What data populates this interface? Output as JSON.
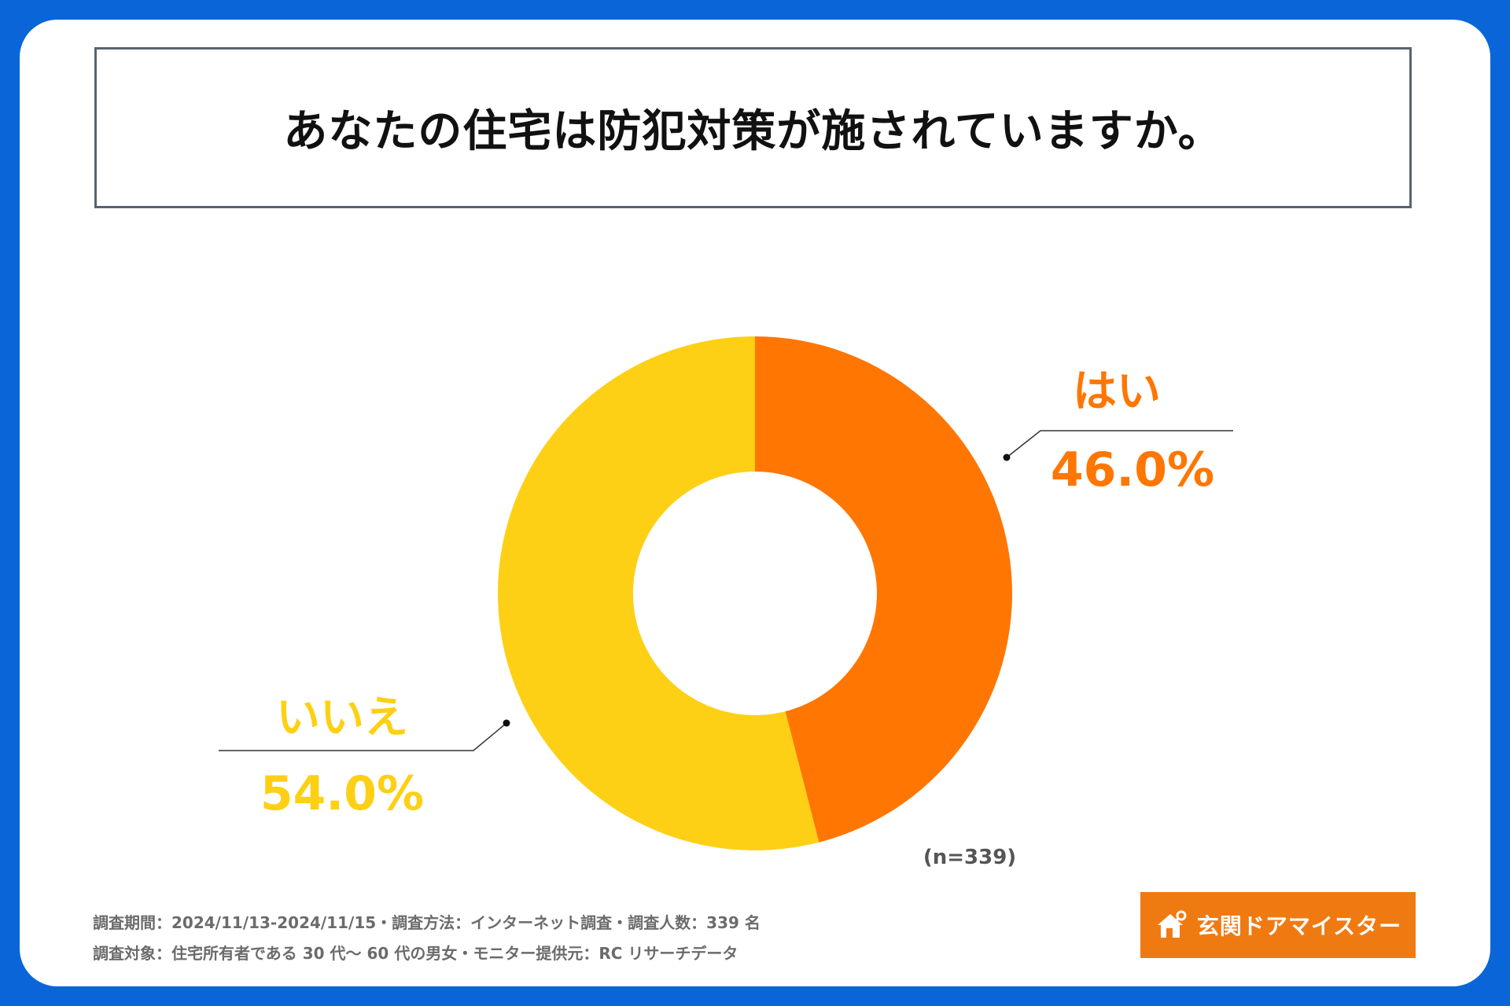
{
  "title": "あなたの住宅は防犯対策が施されていますか。",
  "chart_data": {
    "type": "pie",
    "categories": [
      "はい",
      "いいえ"
    ],
    "values": [
      46.0,
      54.0
    ],
    "value_labels": [
      "46.0%",
      "54.0%"
    ],
    "colors": [
      "#ff7603",
      "#fdd015"
    ],
    "sample_note": "(n=339)"
  },
  "footnotes": [
    "調査期間：2024/11/13-2024/11/15・調査方法：インターネット調査・調査人数：339 名",
    "調査対象：住宅所有者である 30 代～ 60 代の男女・モニター提供元：RC リサーチデータ"
  ],
  "logo": {
    "text": "玄関ドアマイスター",
    "background": "#f07a12",
    "icon": "house-key-icon"
  }
}
